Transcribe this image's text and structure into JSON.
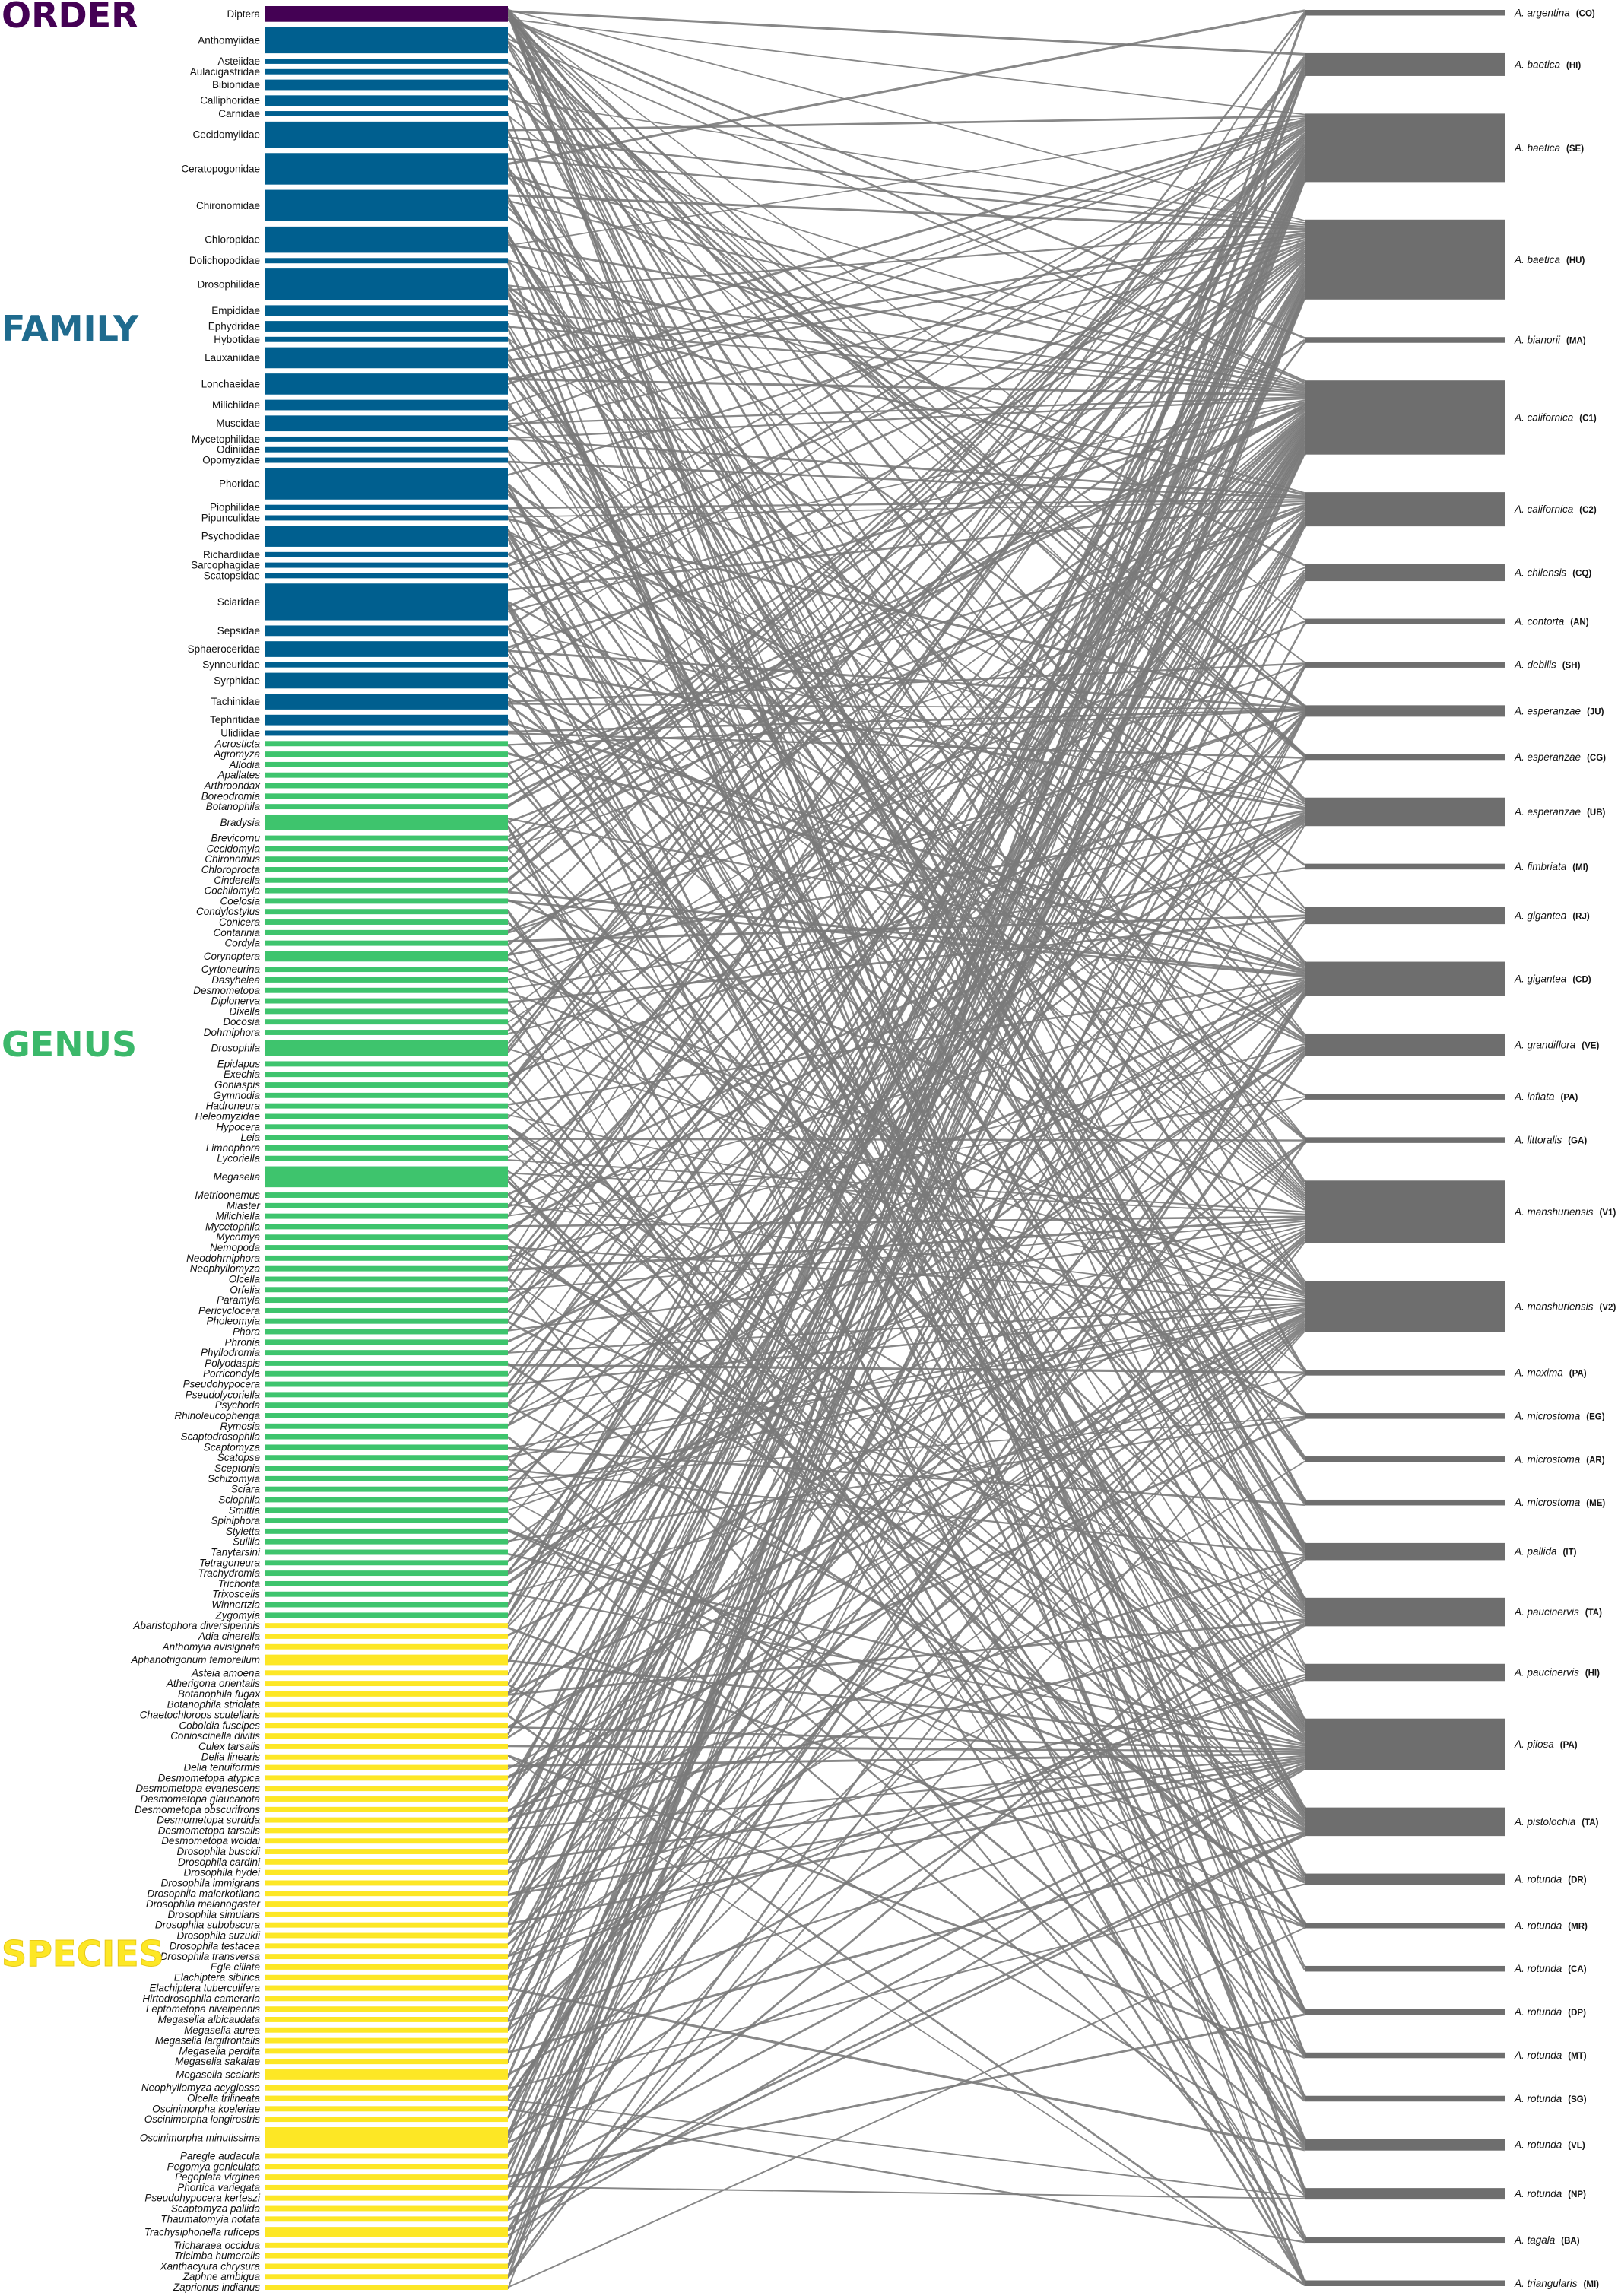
{
  "rank_titles": [
    {
      "key": "order",
      "label": "ORDER",
      "color": "#440154"
    },
    {
      "key": "family",
      "label": "FAMILY",
      "color": "#1f6b8e"
    },
    {
      "key": "genus",
      "label": "GENUS",
      "color": "#3bb86a"
    },
    {
      "key": "species",
      "label": "SPECIES",
      "color": "#fde725"
    }
  ],
  "colors": {
    "order": "#440154",
    "family": "#005f8f",
    "genus": "#3ec46d",
    "species": "#fde725",
    "plant": "#6e6e6e",
    "link": "#7a7a7a"
  },
  "taxa": {
    "order": [
      {
        "n": "Diptera",
        "w": 3
      }
    ],
    "family": [
      {
        "n": "Anthomyiidae",
        "w": 5
      },
      {
        "n": "Asteiidae",
        "w": 1
      },
      {
        "n": "Aulacigastridae",
        "w": 1
      },
      {
        "n": "Bibionidae",
        "w": 2
      },
      {
        "n": "Calliphoridae",
        "w": 2
      },
      {
        "n": "Carnidae",
        "w": 1
      },
      {
        "n": "Cecidomyiidae",
        "w": 5
      },
      {
        "n": "Ceratopogonidae",
        "w": 6
      },
      {
        "n": "Chironomidae",
        "w": 6
      },
      {
        "n": "Chloropidae",
        "w": 5
      },
      {
        "n": "Dolichopodidae",
        "w": 1
      },
      {
        "n": "Drosophilidae",
        "w": 6
      },
      {
        "n": "Empididae",
        "w": 2
      },
      {
        "n": "Ephydridae",
        "w": 2
      },
      {
        "n": "Hybotidae",
        "w": 1
      },
      {
        "n": "Lauxaniidae",
        "w": 4
      },
      {
        "n": "Lonchaeidae",
        "w": 4
      },
      {
        "n": "Milichiidae",
        "w": 2
      },
      {
        "n": "Muscidae",
        "w": 3
      },
      {
        "n": "Mycetophilidae",
        "w": 1
      },
      {
        "n": "Odiniidae",
        "w": 1
      },
      {
        "n": "Opomyzidae",
        "w": 1
      },
      {
        "n": "Phoridae",
        "w": 6
      },
      {
        "n": "Piophilidae",
        "w": 1
      },
      {
        "n": "Pipunculidae",
        "w": 1
      },
      {
        "n": "Psychodidae",
        "w": 4
      },
      {
        "n": "Richardiidae",
        "w": 1
      },
      {
        "n": "Sarcophagidae",
        "w": 1
      },
      {
        "n": "Scatopsidae",
        "w": 1
      },
      {
        "n": "Sciaridae",
        "w": 7
      },
      {
        "n": "Sepsidae",
        "w": 2
      },
      {
        "n": "Sphaeroceridae",
        "w": 3
      },
      {
        "n": "Synneuridae",
        "w": 1
      },
      {
        "n": "Syrphidae",
        "w": 3
      },
      {
        "n": "Tachinidae",
        "w": 3
      },
      {
        "n": "Tephritidae",
        "w": 2
      },
      {
        "n": "Ulidiidae",
        "w": 1
      }
    ],
    "genus": [
      {
        "n": "Acrosticta",
        "w": 1
      },
      {
        "n": "Agromyza",
        "w": 1
      },
      {
        "n": "Allodia",
        "w": 1
      },
      {
        "n": "Apallates",
        "w": 1
      },
      {
        "n": "Arthroondax",
        "w": 1
      },
      {
        "n": "Boreodromia",
        "w": 1
      },
      {
        "n": "Botanophila",
        "w": 1
      },
      {
        "n": "Bradysia",
        "w": 3
      },
      {
        "n": "Brevicornu",
        "w": 1
      },
      {
        "n": "Cecidomyia",
        "w": 1
      },
      {
        "n": "Chironomus",
        "w": 1
      },
      {
        "n": "Chloroprocta",
        "w": 1
      },
      {
        "n": "Cinderella",
        "w": 1
      },
      {
        "n": "Cochliomyia",
        "w": 1
      },
      {
        "n": "Coelosia",
        "w": 1
      },
      {
        "n": "Condylostylus",
        "w": 1
      },
      {
        "n": "Conicera",
        "w": 1
      },
      {
        "n": "Contarinia",
        "w": 1
      },
      {
        "n": "Cordyla",
        "w": 1
      },
      {
        "n": "Corynoptera",
        "w": 2
      },
      {
        "n": "Cyrtoneurina",
        "w": 1
      },
      {
        "n": "Dasyhelea",
        "w": 1
      },
      {
        "n": "Desmometopa",
        "w": 1
      },
      {
        "n": "Diplonerva",
        "w": 1
      },
      {
        "n": "Dixella",
        "w": 1
      },
      {
        "n": "Docosia",
        "w": 1
      },
      {
        "n": "Dohrniphora",
        "w": 1
      },
      {
        "n": "Drosophila",
        "w": 3
      },
      {
        "n": "Epidapus",
        "w": 1
      },
      {
        "n": "Exechia",
        "w": 1
      },
      {
        "n": "Goniaspis",
        "w": 1
      },
      {
        "n": "Gymnodia",
        "w": 1
      },
      {
        "n": "Hadroneura",
        "w": 1
      },
      {
        "n": "Heleomyzidae",
        "w": 1
      },
      {
        "n": "Hypocera",
        "w": 1
      },
      {
        "n": "Leia",
        "w": 1
      },
      {
        "n": "Limnophora",
        "w": 1
      },
      {
        "n": "Lycoriella",
        "w": 1
      },
      {
        "n": "Megaselia",
        "w": 4
      },
      {
        "n": "Metrioonemus",
        "w": 1
      },
      {
        "n": "Miaster",
        "w": 1
      },
      {
        "n": "Milichiella",
        "w": 1
      },
      {
        "n": "Mycetophila",
        "w": 1
      },
      {
        "n": "Mycomya",
        "w": 1
      },
      {
        "n": "Nemopoda",
        "w": 1
      },
      {
        "n": "Neodohrniphora",
        "w": 1
      },
      {
        "n": "Neophyllomyza",
        "w": 1
      },
      {
        "n": "Olcella",
        "w": 1
      },
      {
        "n": "Orfelia",
        "w": 1
      },
      {
        "n": "Paramyia",
        "w": 1
      },
      {
        "n": "Pericyclocera",
        "w": 1
      },
      {
        "n": "Pholeomyia",
        "w": 1
      },
      {
        "n": "Phora",
        "w": 1
      },
      {
        "n": "Phronia",
        "w": 1
      },
      {
        "n": "Phyllodromia",
        "w": 1
      },
      {
        "n": "Polyodaspis",
        "w": 1
      },
      {
        "n": "Porricondyla",
        "w": 1
      },
      {
        "n": "Pseudohypocera",
        "w": 1
      },
      {
        "n": "Pseudolycoriella",
        "w": 1
      },
      {
        "n": "Psychoda",
        "w": 1
      },
      {
        "n": "Rhinoleucophenga",
        "w": 1
      },
      {
        "n": "Rymosia",
        "w": 1
      },
      {
        "n": "Scaptodrosophila",
        "w": 1
      },
      {
        "n": "Scaptomyza",
        "w": 1
      },
      {
        "n": "Scatopse",
        "w": 1
      },
      {
        "n": "Sceptonia",
        "w": 1
      },
      {
        "n": "Schizomyia",
        "w": 1
      },
      {
        "n": "Sciara",
        "w": 1
      },
      {
        "n": "Sciophila",
        "w": 1
      },
      {
        "n": "Smittia",
        "w": 1
      },
      {
        "n": "Spiniphora",
        "w": 1
      },
      {
        "n": "Styletta",
        "w": 1
      },
      {
        "n": "Suillia",
        "w": 1
      },
      {
        "n": "Tanytarsini",
        "w": 1
      },
      {
        "n": "Tetragoneura",
        "w": 1
      },
      {
        "n": "Trachydromia",
        "w": 1
      },
      {
        "n": "Trichonta",
        "w": 1
      },
      {
        "n": "Trixoscelis",
        "w": 1
      },
      {
        "n": "Winnertzia",
        "w": 1
      },
      {
        "n": "Zygomyia",
        "w": 1
      }
    ],
    "species": [
      {
        "n": "Abaristophora diversipennis",
        "w": 1
      },
      {
        "n": "Adia cinerella",
        "w": 1
      },
      {
        "n": "Anthomyia avisignata",
        "w": 1
      },
      {
        "n": "Aphanotrigonum femorellum",
        "w": 2
      },
      {
        "n": "Asteia amoena",
        "w": 1
      },
      {
        "n": "Atherigona orientalis",
        "w": 1
      },
      {
        "n": "Botanophila fugax",
        "w": 1
      },
      {
        "n": "Botanophila striolata",
        "w": 1
      },
      {
        "n": "Chaetochlorops scutellaris",
        "w": 1
      },
      {
        "n": "Coboldia fuscipes",
        "w": 1
      },
      {
        "n": "Conioscinella divitis",
        "w": 1
      },
      {
        "n": "Culex tarsalis",
        "w": 1
      },
      {
        "n": "Delia linearis",
        "w": 1
      },
      {
        "n": "Delia tenuiformis",
        "w": 1
      },
      {
        "n": "Desmometopa atypica",
        "w": 1
      },
      {
        "n": "Desmometopa evanescens",
        "w": 1
      },
      {
        "n": "Desmometopa glaucanota",
        "w": 1
      },
      {
        "n": "Desmometopa obscurifrons",
        "w": 1
      },
      {
        "n": "Desmometopa sordida",
        "w": 1
      },
      {
        "n": "Desmometopa tarsalis",
        "w": 1
      },
      {
        "n": "Desmometopa woldai",
        "w": 1
      },
      {
        "n": "Drosophila busckii",
        "w": 1
      },
      {
        "n": "Drosophila cardini",
        "w": 1
      },
      {
        "n": "Drosophila hydei",
        "w": 1
      },
      {
        "n": "Drosophila immigrans",
        "w": 1
      },
      {
        "n": "Drosophila malerkotliana",
        "w": 1
      },
      {
        "n": "Drosophila melanogaster",
        "w": 1
      },
      {
        "n": "Drosophila simulans",
        "w": 1
      },
      {
        "n": "Drosophila subobscura",
        "w": 1
      },
      {
        "n": "Drosophila suzukii",
        "w": 1
      },
      {
        "n": "Drosophila testacea",
        "w": 1
      },
      {
        "n": "Drosophila transversa",
        "w": 1
      },
      {
        "n": "Egle ciliate",
        "w": 1
      },
      {
        "n": "Elachiptera sibirica",
        "w": 1
      },
      {
        "n": "Elachiptera tuberculifera",
        "w": 1
      },
      {
        "n": "Hirtodrosophila cameraria",
        "w": 1
      },
      {
        "n": "Leptometopa niveipennis",
        "w": 1
      },
      {
        "n": "Megaselia albicaudata",
        "w": 1
      },
      {
        "n": "Megaselia aurea",
        "w": 1
      },
      {
        "n": "Megaselia largifrontalis",
        "w": 1
      },
      {
        "n": "Megaselia perdita",
        "w": 1
      },
      {
        "n": "Megaselia sakaiae",
        "w": 1
      },
      {
        "n": "Megaselia scalaris",
        "w": 2
      },
      {
        "n": "Neophyllomyza acyglossa",
        "w": 1
      },
      {
        "n": "Olcella trilineata",
        "w": 1
      },
      {
        "n": "Oscinimorpha koeleriae",
        "w": 1
      },
      {
        "n": "Oscinimorpha longirostris",
        "w": 1
      },
      {
        "n": "Oscinimorpha minutissima",
        "w": 4
      },
      {
        "n": "Paregle audacula",
        "w": 1
      },
      {
        "n": "Pegomya geniculata",
        "w": 1
      },
      {
        "n": "Pegoplata virginea",
        "w": 1
      },
      {
        "n": "Phortica variegata",
        "w": 1
      },
      {
        "n": "Pseudohypocera kerteszi",
        "w": 1
      },
      {
        "n": "Scaptomyza pallida",
        "w": 1
      },
      {
        "n": "Thaumatomyia notata",
        "w": 1
      },
      {
        "n": "Trachysiphonella ruficeps",
        "w": 2
      },
      {
        "n": "Tricharaea occidua",
        "w": 1
      },
      {
        "n": "Tricimba humeralis",
        "w": 1
      },
      {
        "n": "Xanthacyura chrysura",
        "w": 1
      },
      {
        "n": "Zaphne ambigua",
        "w": 1
      },
      {
        "n": "Zaprionus indianus",
        "w": 1
      }
    ]
  },
  "plants": [
    {
      "sp": "A. argentina",
      "code": "(CO)",
      "w": 1
    },
    {
      "sp": "A. baetica",
      "code": "(HI)",
      "w": 4
    },
    {
      "sp": "A. baetica",
      "code": "(SE)",
      "w": 12
    },
    {
      "sp": "A. baetica",
      "code": "(HU)",
      "w": 14
    },
    {
      "sp": "A. bianorii",
      "code": "(MA)",
      "w": 1
    },
    {
      "sp": "A. californica",
      "code": "(C1)",
      "w": 13
    },
    {
      "sp": "A. californica",
      "code": "(C2)",
      "w": 6
    },
    {
      "sp": "A. chilensis",
      "code": "(CQ)",
      "w": 3
    },
    {
      "sp": "A. contorta",
      "code": "(AN)",
      "w": 1
    },
    {
      "sp": "A. debilis",
      "code": "(SH)",
      "w": 1
    },
    {
      "sp": "A. esperanzae",
      "code": "(JU)",
      "w": 2
    },
    {
      "sp": "A. esperanzae",
      "code": "(CG)",
      "w": 1
    },
    {
      "sp": "A. esperanzae",
      "code": "(UB)",
      "w": 5
    },
    {
      "sp": "A. fimbriata",
      "code": "(MI)",
      "w": 1
    },
    {
      "sp": "A. gigantea",
      "code": "(RJ)",
      "w": 3
    },
    {
      "sp": "A. gigantea",
      "code": "(CD)",
      "w": 6
    },
    {
      "sp": "A. grandiflora",
      "code": "(VE)",
      "w": 4
    },
    {
      "sp": "A. inflata",
      "code": "(PA)",
      "w": 1
    },
    {
      "sp": "A. littoralis",
      "code": "(GA)",
      "w": 1
    },
    {
      "sp": "A. manshuriensis",
      "code": "(V1)",
      "w": 11
    },
    {
      "sp": "A. manshuriensis",
      "code": "(V2)",
      "w": 9
    },
    {
      "sp": "A. maxima",
      "code": "(PA)",
      "w": 1
    },
    {
      "sp": "A. microstoma",
      "code": "(EG)",
      "w": 1
    },
    {
      "sp": "A. microstoma",
      "code": "(AR)",
      "w": 1
    },
    {
      "sp": "A. microstoma",
      "code": "(ME)",
      "w": 1
    },
    {
      "sp": "A. pallida",
      "code": "(IT)",
      "w": 3
    },
    {
      "sp": "A. paucinervis",
      "code": "(TA)",
      "w": 5
    },
    {
      "sp": "A. paucinervis",
      "code": "(HI)",
      "w": 3
    },
    {
      "sp": "A. pilosa",
      "code": "(PA)",
      "w": 9
    },
    {
      "sp": "A. pistolochia",
      "code": "(TA)",
      "w": 5
    },
    {
      "sp": "A. rotunda",
      "code": "(DR)",
      "w": 2
    },
    {
      "sp": "A. rotunda",
      "code": "(MR)",
      "w": 1
    },
    {
      "sp": "A. rotunda",
      "code": "(CA)",
      "w": 1
    },
    {
      "sp": "A. rotunda",
      "code": "(DP)",
      "w": 1
    },
    {
      "sp": "A. rotunda",
      "code": "(MT)",
      "w": 1
    },
    {
      "sp": "A. rotunda",
      "code": "(SG)",
      "w": 1
    },
    {
      "sp": "A. rotunda",
      "code": "(VL)",
      "w": 2
    },
    {
      "sp": "A. rotunda",
      "code": "(NP)",
      "w": 2
    },
    {
      "sp": "A. tagala",
      "code": "(BA)",
      "w": 1
    },
    {
      "sp": "A. triangularis",
      "code": "(MI)",
      "w": 1
    }
  ]
}
